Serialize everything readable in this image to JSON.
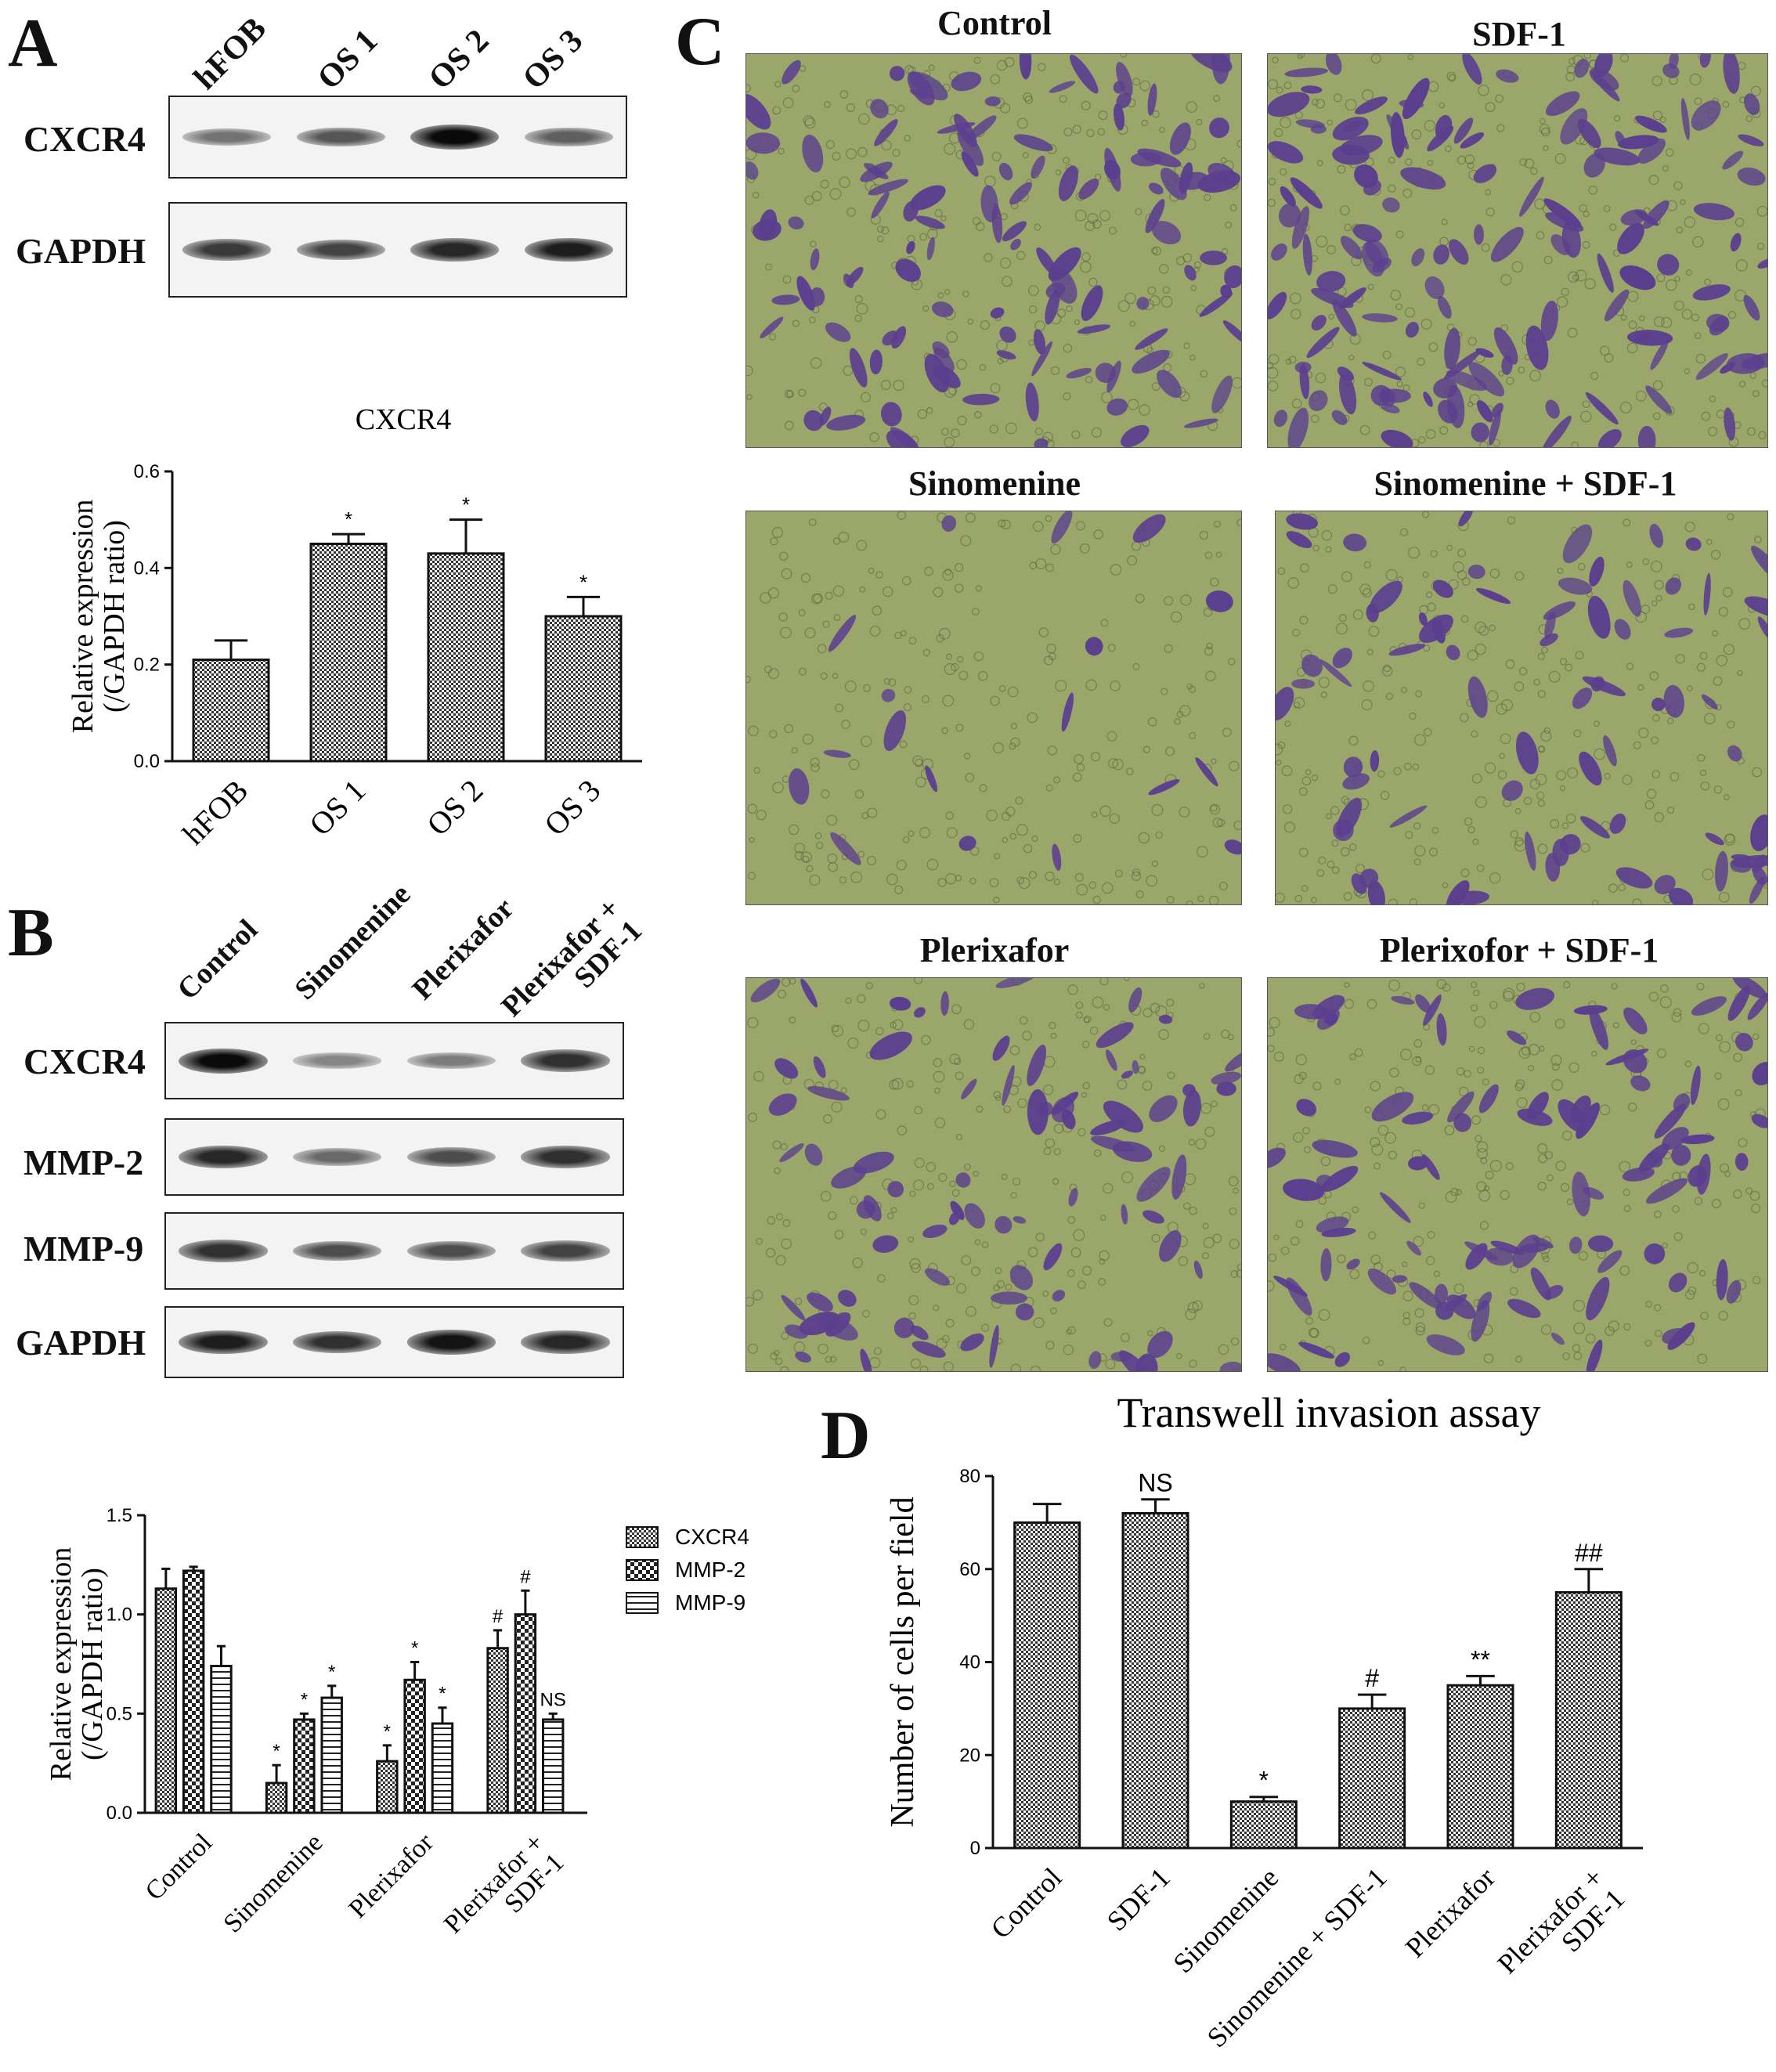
{
  "panels": {
    "a": "A",
    "b": "B",
    "c": "C",
    "d": "D"
  },
  "colors": {
    "stain": "#5b3f8f",
    "background_field": "#9aa66a",
    "ink": "#111111"
  },
  "blot_a": {
    "lanes": [
      "hFOB",
      "OS 1",
      "OS 2",
      "OS 3"
    ],
    "rows": [
      "CXCR4",
      "GAPDH"
    ],
    "cxcr4_intensity": [
      0.45,
      0.6,
      1.0,
      0.55
    ],
    "gapdh_intensity": [
      0.75,
      0.7,
      0.85,
      0.9
    ]
  },
  "blot_b": {
    "lanes": [
      "Control",
      "Sinomenine",
      "Plerixafor",
      "Plerixafor +\nSDF-1"
    ],
    "rows": [
      "CXCR4",
      "MMP-2",
      "MMP-9",
      "GAPDH"
    ],
    "intensity": [
      [
        1.0,
        0.35,
        0.4,
        0.8
      ],
      [
        0.85,
        0.5,
        0.65,
        0.8
      ],
      [
        0.8,
        0.65,
        0.65,
        0.7
      ],
      [
        0.9,
        0.8,
        0.95,
        0.85
      ]
    ]
  },
  "micrographs": {
    "titles": [
      "Control",
      "SDF-1",
      "Sinomenine",
      "Sinomenine + SDF-1",
      "Plerixafor",
      "Plerixofor + SDF-1"
    ],
    "stain_density": [
      0.55,
      0.65,
      0.08,
      0.35,
      0.38,
      0.45
    ]
  },
  "chart_data": [
    {
      "id": "A",
      "type": "bar",
      "title": "CXCR4",
      "ylabel": "Relative expression\n(/GAPDH ratio)",
      "categories": [
        "hFOB",
        "OS 1",
        "OS 2",
        "OS 3"
      ],
      "values": [
        0.21,
        0.45,
        0.43,
        0.3
      ],
      "errors": [
        0.04,
        0.02,
        0.07,
        0.04
      ],
      "annotations": [
        "",
        "*",
        "*",
        "*"
      ],
      "ylim": [
        0,
        0.6
      ],
      "yticks": [
        "0.0",
        "0.2",
        "0.4",
        "0.6"
      ]
    },
    {
      "id": "B",
      "type": "bar",
      "ylabel": "Relative expression\n(/GAPDH ratio)",
      "categories": [
        "Control",
        "Sinomenine",
        "Plerixafor",
        "Plerixafor +\nSDF-1"
      ],
      "series": [
        {
          "name": "CXCR4",
          "values": [
            1.13,
            0.15,
            0.26,
            0.83
          ],
          "errors": [
            0.1,
            0.09,
            0.08,
            0.09
          ],
          "annotations": [
            "",
            "*",
            "*",
            "#"
          ]
        },
        {
          "name": "MMP-2",
          "values": [
            1.22,
            0.47,
            0.67,
            1.0
          ],
          "errors": [
            0.02,
            0.03,
            0.09,
            0.12
          ],
          "annotations": [
            "",
            "*",
            "*",
            "#"
          ]
        },
        {
          "name": "MMP-9",
          "values": [
            0.74,
            0.58,
            0.45,
            0.47
          ],
          "errors": [
            0.1,
            0.06,
            0.08,
            0.03
          ],
          "annotations": [
            "",
            "*",
            "*",
            "NS"
          ]
        }
      ],
      "ylim": [
        0,
        1.5
      ],
      "yticks": [
        "0.0",
        "0.5",
        "1.0",
        "1.5"
      ],
      "legend": "right"
    },
    {
      "id": "D",
      "type": "bar",
      "title": "Transwell invasion assay",
      "ylabel": "Number of cells per field",
      "categories": [
        "Control",
        "SDF-1",
        "Sinomenine",
        "Sinomenine + SDF-1",
        "Plerixafor",
        "Plerixafor +\nSDF-1"
      ],
      "values": [
        70,
        72,
        10,
        30,
        35,
        55
      ],
      "errors": [
        4,
        3,
        1,
        3,
        2,
        5
      ],
      "annotations": [
        "",
        "NS",
        "*",
        "#",
        "**",
        "##"
      ],
      "ylim": [
        0,
        80
      ],
      "yticks": [
        "0",
        "20",
        "40",
        "60",
        "80"
      ]
    }
  ]
}
